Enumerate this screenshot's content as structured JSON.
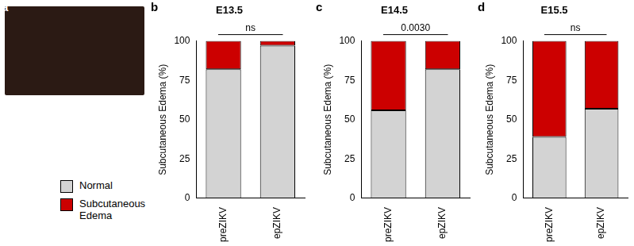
{
  "panel_labels": [
    "a",
    "b",
    "c",
    "d"
  ],
  "chart_data": [
    {
      "type": "bar",
      "stacked": true,
      "grid": false,
      "title": "E13.5",
      "categories": [
        "preZIKV",
        "epZIKV"
      ],
      "series": [
        {
          "name": "Normal",
          "color": "#d3d3d3",
          "values": [
            82,
            97
          ]
        },
        {
          "name": "Subcutaneous Edema",
          "color": "#cc0000",
          "values": [
            18,
            3
          ]
        }
      ],
      "ylim": [
        0,
        100
      ],
      "yticks": [
        0,
        25,
        50,
        75,
        100
      ],
      "y_label": "Subcutaneous Edema (%)",
      "annotation": "ns"
    },
    {
      "type": "bar",
      "stacked": true,
      "grid": false,
      "title": "E14.5",
      "categories": [
        "preZIKV",
        "epZIKV"
      ],
      "series": [
        {
          "name": "Normal",
          "color": "#d3d3d3",
          "values": [
            56,
            82
          ]
        },
        {
          "name": "Subcutaneous Edema",
          "color": "#cc0000",
          "values": [
            44,
            18
          ]
        }
      ],
      "ylim": [
        0,
        100
      ],
      "yticks": [
        0,
        25,
        50,
        75,
        100
      ],
      "y_label": "Subcutaneous Edema (%)",
      "annotation": "0.0030"
    },
    {
      "type": "bar",
      "stacked": true,
      "grid": false,
      "title": "E15.5",
      "categories": [
        "preZIKV",
        "epZIKV"
      ],
      "series": [
        {
          "name": "Normal",
          "color": "#d3d3d3",
          "values": [
            39,
            57
          ]
        },
        {
          "name": "Subcutaneous Edema",
          "color": "#cc0000",
          "values": [
            61,
            43
          ]
        }
      ],
      "ylim": [
        0,
        100
      ],
      "yticks": [
        0,
        25,
        50,
        75,
        100
      ],
      "y_label": "Subcutaneous Edema (%)",
      "annotation": "ns"
    }
  ]
}
